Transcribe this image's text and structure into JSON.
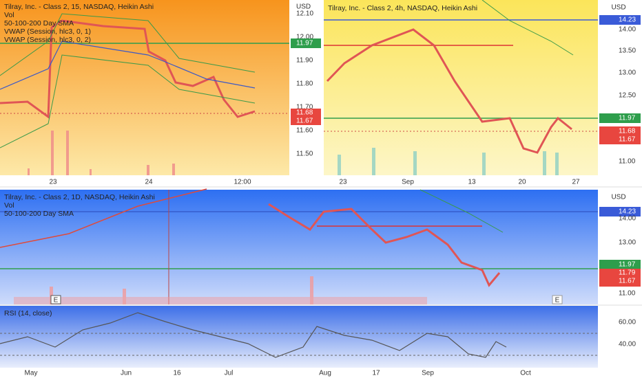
{
  "top_left": {
    "legend": [
      "Tilray, Inc. - Class 2, 15, NASDAQ, Heikin Ashi",
      "Vol",
      "50-100-200 Day SMA",
      "VWAP (Session, hlc3, 0, 1)",
      "VWAP (Session, hlc3, 0, 2)"
    ],
    "currency": "USD",
    "price_labels": [
      "12.10",
      "12.00",
      "11.90",
      "11.80",
      "11.70",
      "11.60",
      "11.50"
    ],
    "price_tags": [
      "11.97",
      "11.68",
      "11.67"
    ],
    "time_labels": [
      "23",
      "24",
      "12:00"
    ]
  },
  "top_right": {
    "legend": [
      "Tilray, Inc. - Class 2, 4h, NASDAQ, Heikin Ashi"
    ],
    "currency": "USD",
    "price_labels": [
      "14.00",
      "13.50",
      "13.00",
      "12.50",
      "11.00"
    ],
    "price_tags": [
      "14.23",
      "11.97",
      "11.68",
      "11.67"
    ],
    "time_labels": [
      "23",
      "Sep",
      "13",
      "20",
      "27"
    ]
  },
  "bottom": {
    "legend": [
      "Tilray, Inc. - Class 2, 1D, NASDAQ, Heikin Ashi",
      "Vol",
      "50-100-200 Day SMA"
    ],
    "currency": "USD",
    "price_labels": [
      "14.00",
      "13.00",
      "11.00"
    ],
    "price_tags": [
      "14.23",
      "11.97",
      "11.79",
      "11.67"
    ],
    "earnings": [
      "E",
      "E"
    ]
  },
  "rsi": {
    "legend": [
      "RSI (14, close)"
    ],
    "labels": [
      "60.00",
      "40.00"
    ]
  },
  "time_axis": [
    "May",
    "Jun",
    "16",
    "Jul",
    "Aug",
    "17",
    "Sep",
    "Oct"
  ]
}
